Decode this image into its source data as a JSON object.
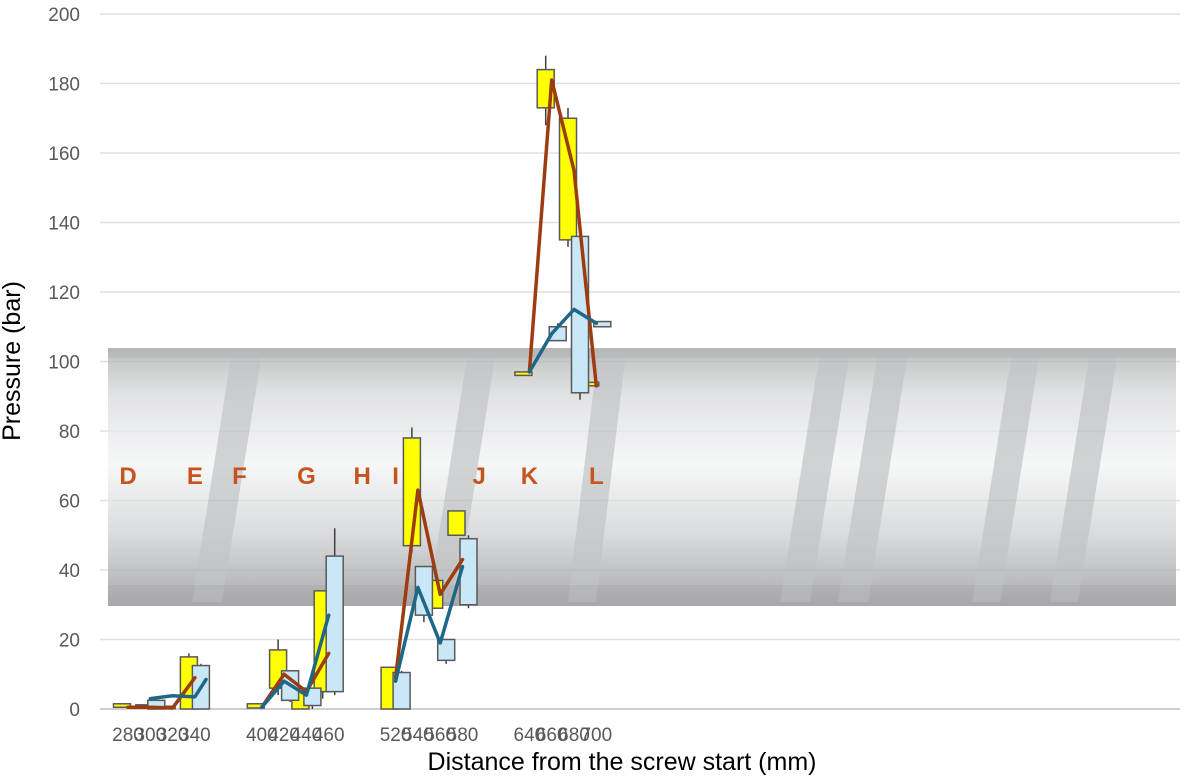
{
  "chart_data": {
    "type": "box",
    "title": "",
    "xlabel": "Distance from the screw start (mm)",
    "ylabel": "Pressure (bar)",
    "ylim": [
      0,
      200
    ],
    "yticks": [
      0,
      20,
      40,
      60,
      80,
      100,
      120,
      140,
      160,
      180,
      200
    ],
    "xticks": [
      280,
      300,
      320,
      340,
      400,
      420,
      440,
      460,
      520,
      540,
      560,
      580,
      640,
      660,
      680,
      700
    ],
    "grid": "horizontal",
    "background_image": "photograph of an extruder screw spanning roughly 30 to 105 bar",
    "zone_labels": [
      {
        "label": "D",
        "x": 280
      },
      {
        "label": "E",
        "x": 340
      },
      {
        "label": "F",
        "x": 380
      },
      {
        "label": "G",
        "x": 440
      },
      {
        "label": "H",
        "x": 490
      },
      {
        "label": "I",
        "x": 520
      },
      {
        "label": "J",
        "x": 595
      },
      {
        "label": "K",
        "x": 640
      },
      {
        "label": "L",
        "x": 700
      }
    ],
    "series": [
      {
        "color": "#ffff00",
        "line_color": "#9c3c0f",
        "boxes": [
          {
            "x": 280,
            "low": 0.5,
            "q1": 0.5,
            "q3": 1.5,
            "high": 1.5
          },
          {
            "x": 300,
            "low": 0.3,
            "q1": 0.3,
            "q3": 1.2,
            "high": 1.2
          },
          {
            "x": 320,
            "low": 0.2,
            "q1": 0.2,
            "q3": 0.8,
            "high": 0.8
          },
          {
            "x": 340,
            "low": 0,
            "q1": 0,
            "q3": 15,
            "high": 16
          },
          {
            "x": 400,
            "low": 0.3,
            "q1": 0.3,
            "q3": 1.5,
            "high": 1.5
          },
          {
            "x": 420,
            "low": 4,
            "q1": 6,
            "q3": 17,
            "high": 20
          },
          {
            "x": 440,
            "low": 0,
            "q1": 0,
            "q3": 6,
            "high": 6
          },
          {
            "x": 460,
            "low": 3,
            "q1": 5,
            "q3": 34,
            "high": 34
          },
          {
            "x": 520,
            "low": 0,
            "q1": 0,
            "q3": 12,
            "high": 12
          },
          {
            "x": 540,
            "low": 45,
            "q1": 47,
            "q3": 78,
            "high": 81
          },
          {
            "x": 560,
            "low": 29,
            "q1": 29,
            "q3": 37,
            "high": 37
          },
          {
            "x": 580,
            "low": 50,
            "q1": 50,
            "q3": 57,
            "high": 57
          },
          {
            "x": 640,
            "low": 96,
            "q1": 96,
            "q3": 97,
            "high": 97
          },
          {
            "x": 660,
            "low": 168,
            "q1": 173,
            "q3": 184,
            "high": 188
          },
          {
            "x": 680,
            "low": 133,
            "q1": 135,
            "q3": 170,
            "high": 173
          },
          {
            "x": 700,
            "low": 93,
            "q1": 93,
            "q3": 94,
            "high": 94
          }
        ],
        "line": [
          {
            "x": 280,
            "y": 0.5
          },
          {
            "x": 300,
            "y": 0.5
          },
          {
            "x": 320,
            "y": 0.3
          },
          {
            "x": 340,
            "y": 9
          },
          {
            "x": 400,
            "y": 0.5
          },
          {
            "x": 420,
            "y": 10
          },
          {
            "x": 440,
            "y": 5
          },
          {
            "x": 460,
            "y": 16
          },
          {
            "x": 520,
            "y": 9
          },
          {
            "x": 540,
            "y": 63
          },
          {
            "x": 560,
            "y": 33
          },
          {
            "x": 580,
            "y": 43
          },
          {
            "x": 640,
            "y": 97
          },
          {
            "x": 660,
            "y": 181
          },
          {
            "x": 680,
            "y": 155
          },
          {
            "x": 700,
            "y": 93
          }
        ]
      },
      {
        "color": "#c9e7f6",
        "line_color": "#1f6787",
        "boxes": [
          {
            "x": 300,
            "low": 0,
            "q1": 0,
            "q3": 2.5,
            "high": 2.5
          },
          {
            "x": 340,
            "low": 0,
            "q1": 0,
            "q3": 12.5,
            "high": 13
          },
          {
            "x": 420,
            "low": 2,
            "q1": 2.5,
            "q3": 11,
            "high": 11
          },
          {
            "x": 440,
            "low": 0,
            "q1": 1,
            "q3": 6,
            "high": 6
          },
          {
            "x": 460,
            "low": 4,
            "q1": 5,
            "q3": 44,
            "high": 52
          },
          {
            "x": 520,
            "low": 0,
            "q1": 0,
            "q3": 10.5,
            "high": 11
          },
          {
            "x": 540,
            "low": 25,
            "q1": 27,
            "q3": 41,
            "high": 41
          },
          {
            "x": 560,
            "low": 13,
            "q1": 14,
            "q3": 20,
            "high": 20
          },
          {
            "x": 580,
            "low": 29,
            "q1": 30,
            "q3": 49,
            "high": 50
          },
          {
            "x": 660,
            "low": 106,
            "q1": 106,
            "q3": 110,
            "high": 111
          },
          {
            "x": 680,
            "low": 89,
            "q1": 91,
            "q3": 136,
            "high": 136
          },
          {
            "x": 700,
            "low": 110,
            "q1": 110,
            "q3": 111.5,
            "high": 111.5
          }
        ],
        "line": [
          {
            "x": 300,
            "y": 3
          },
          {
            "x": 320,
            "y": 3.8
          },
          {
            "x": 340,
            "y": 3.5
          },
          {
            "x": 350,
            "y": 8.5
          },
          {
            "x": 400,
            "y": 0.5
          },
          {
            "x": 420,
            "y": 8
          },
          {
            "x": 440,
            "y": 4
          },
          {
            "x": 460,
            "y": 27
          },
          {
            "x": 520,
            "y": 8
          },
          {
            "x": 540,
            "y": 35
          },
          {
            "x": 560,
            "y": 19
          },
          {
            "x": 580,
            "y": 41
          },
          {
            "x": 640,
            "y": 97
          },
          {
            "x": 660,
            "y": 108
          },
          {
            "x": 680,
            "y": 115
          },
          {
            "x": 700,
            "y": 111
          }
        ]
      }
    ]
  }
}
